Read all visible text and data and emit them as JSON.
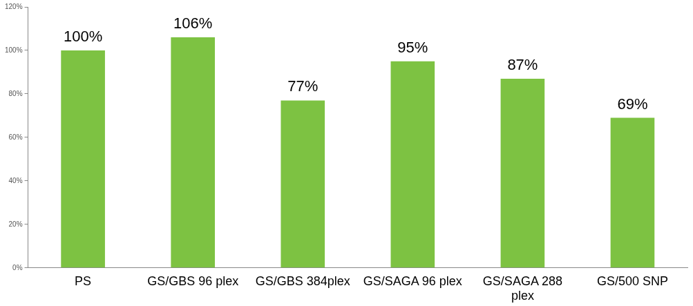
{
  "chart_data": {
    "type": "bar",
    "categories": [
      "PS",
      "GS/GBS 96 plex",
      "GS/GBS 384plex",
      "GS/SAGA 96 plex",
      "GS/SAGA 288 plex",
      "GS/500 SNP"
    ],
    "values": [
      100,
      106,
      77,
      95,
      87,
      69
    ],
    "value_labels": [
      "100%",
      "106%",
      "77%",
      "95%",
      "87%",
      "69%"
    ],
    "color": "#7dc242",
    "ylim": [
      0,
      120
    ],
    "yticks": [
      {
        "value": 0,
        "label": "0%"
      },
      {
        "value": 20,
        "label": "20%"
      },
      {
        "value": 40,
        "label": "40%"
      },
      {
        "value": 60,
        "label": "60%"
      },
      {
        "value": 80,
        "label": "80%"
      },
      {
        "value": 100,
        "label": "100%"
      },
      {
        "value": 120,
        "label": "120%"
      }
    ],
    "grid": false,
    "legend": false
  }
}
